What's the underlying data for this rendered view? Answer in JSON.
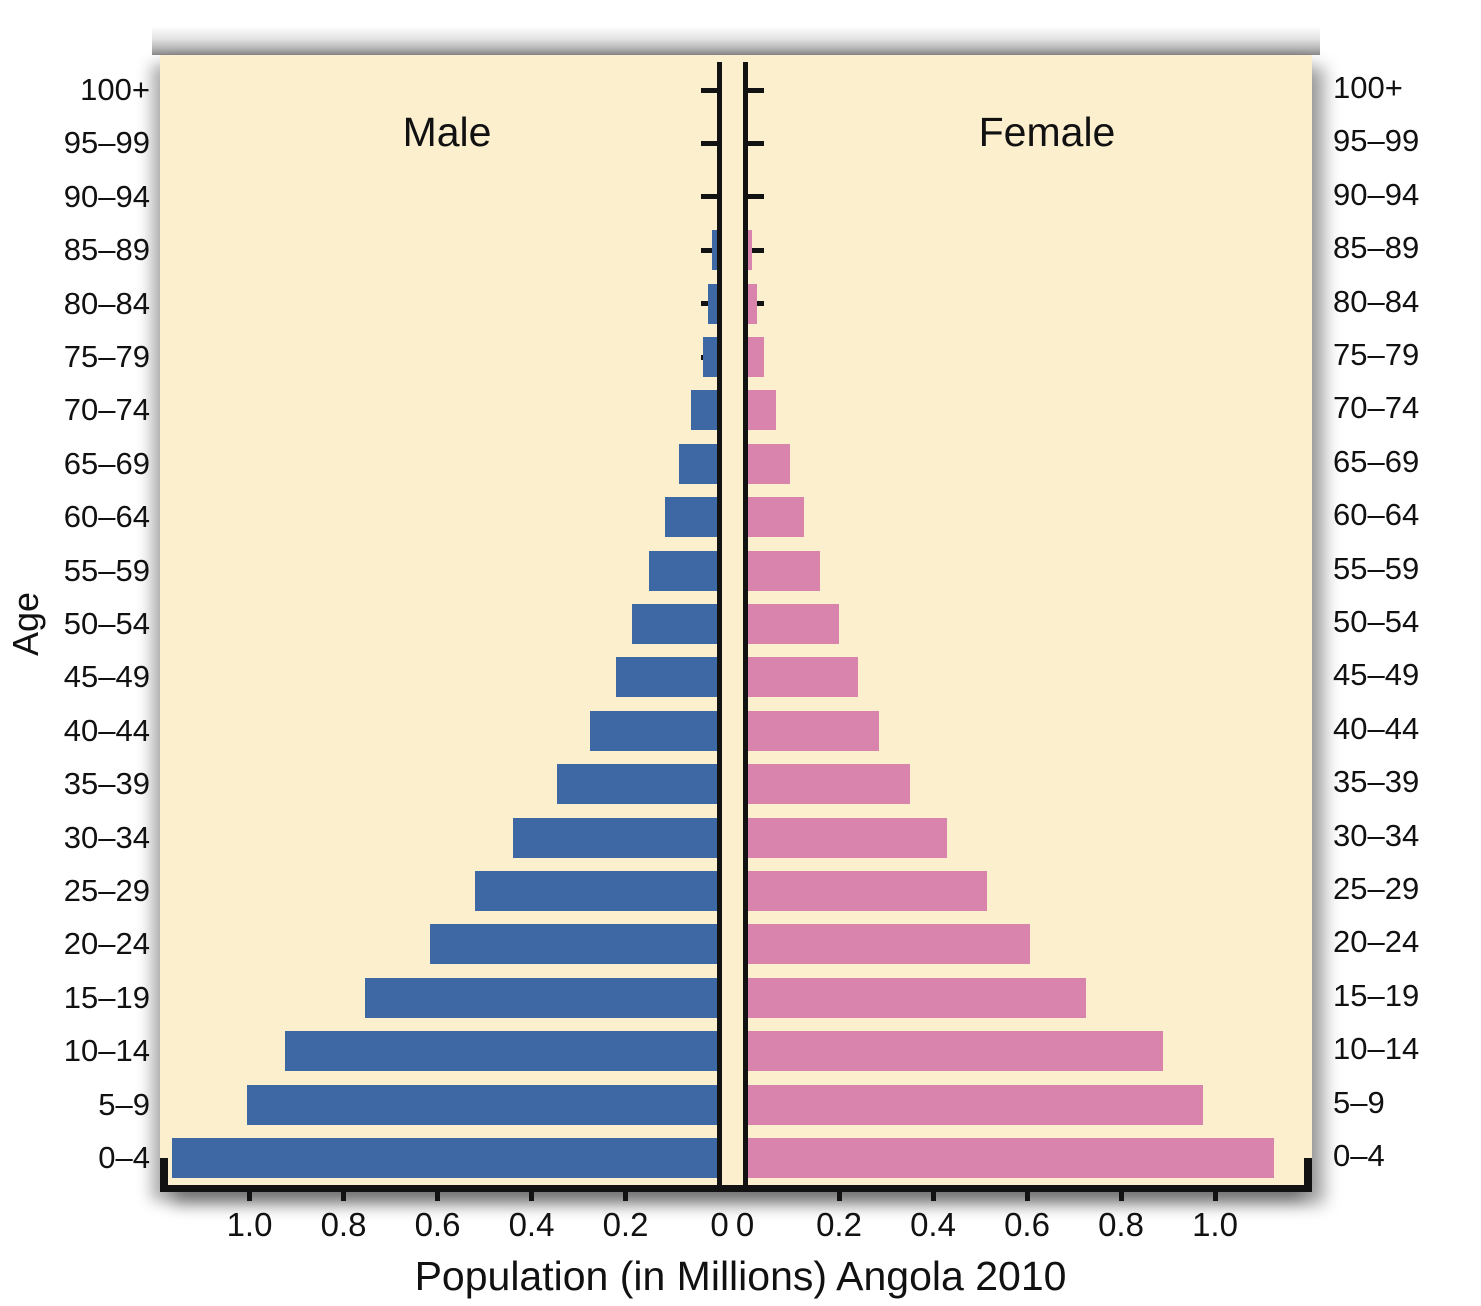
{
  "figure": {
    "male_label": "Male",
    "female_label": "Female",
    "y_axis_label": "Age",
    "x_axis_title": "Population (in Millions) Angola 2010"
  },
  "chart_data": {
    "type": "bar",
    "subtype": "population-pyramid",
    "title": "Population (in Millions) Angola 2010",
    "xlabel": "Population (in Millions)",
    "ylabel": "Age",
    "unit": "millions of people",
    "categories": [
      "100+",
      "95–99",
      "90–94",
      "85–89",
      "80–84",
      "75–79",
      "70–74",
      "65–69",
      "60–64",
      "55–59",
      "50–54",
      "45–49",
      "40–44",
      "35–39",
      "30–34",
      "25–29",
      "20–24",
      "15–19",
      "10–14",
      "5–9",
      "0–4"
    ],
    "series": [
      {
        "name": "Male",
        "side": "left",
        "color": "#3E68A4",
        "values": [
          0,
          0,
          0,
          0.01,
          0.02,
          0.03,
          0.055,
          0.08,
          0.11,
          0.145,
          0.18,
          0.215,
          0.27,
          0.34,
          0.435,
          0.515,
          0.61,
          0.75,
          0.92,
          1.0,
          1.16
        ]
      },
      {
        "name": "Female",
        "side": "right",
        "color": "#D884AD",
        "values": [
          0,
          0,
          0,
          0.01,
          0.02,
          0.035,
          0.06,
          0.09,
          0.12,
          0.155,
          0.195,
          0.235,
          0.28,
          0.345,
          0.425,
          0.51,
          0.6,
          0.72,
          0.885,
          0.97,
          1.12
        ]
      }
    ],
    "x_tick_labels_left": [
      "1.0",
      "0.8",
      "0.6",
      "0.4",
      "0.2",
      "0"
    ],
    "x_tick_labels_right": [
      "0",
      "0.2",
      "0.4",
      "0.6",
      "0.8",
      "1.0"
    ],
    "xlim_each_side": [
      0,
      1.2
    ],
    "grid": false,
    "legend_position": "in-plot side titles",
    "colors": {
      "plot_background": "#FCEFCE",
      "male": "#3E68A4",
      "female": "#D884AD",
      "axis": "#121212",
      "page_background": "#FFFFFF"
    }
  }
}
